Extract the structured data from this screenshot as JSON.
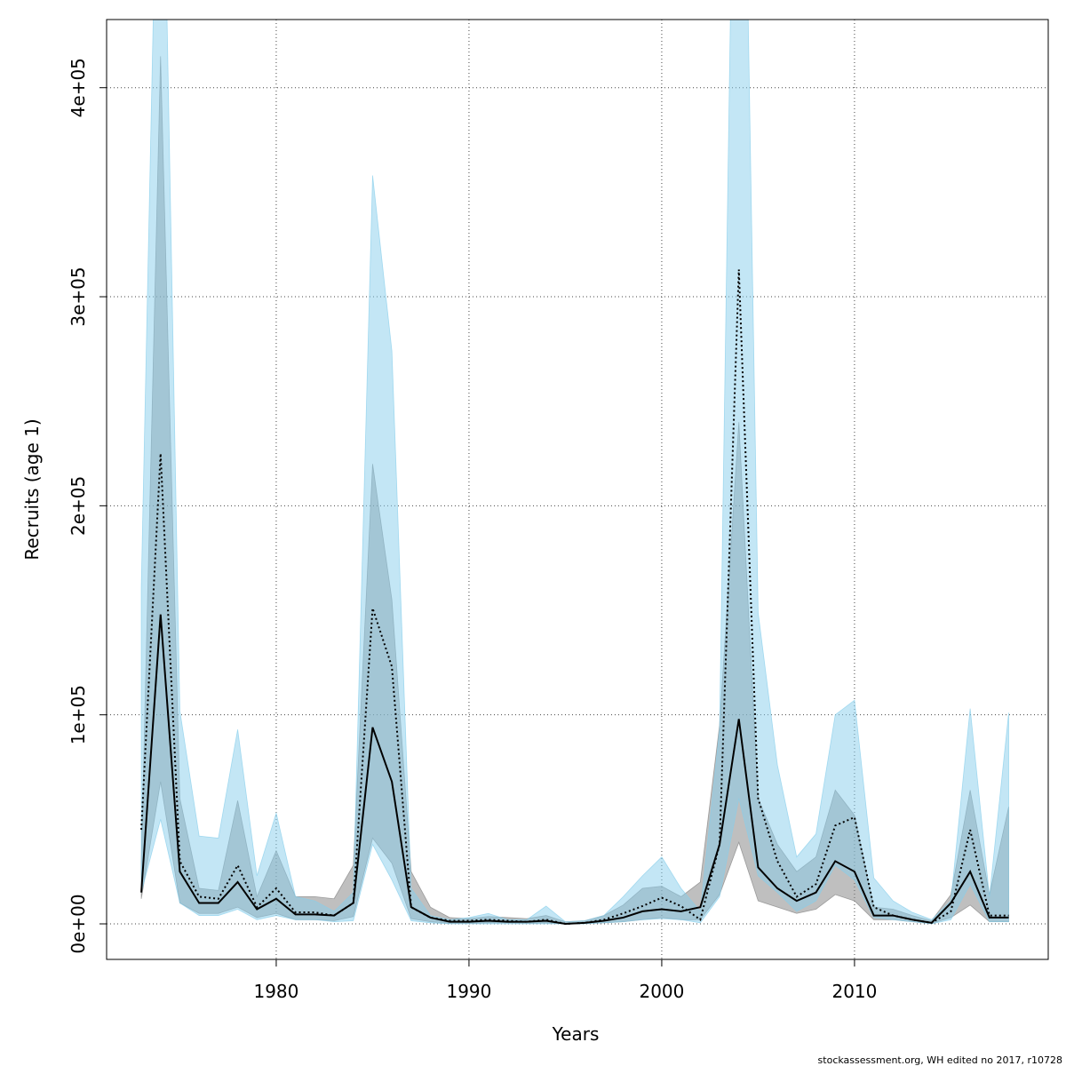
{
  "chart_data": {
    "type": "band-line",
    "xlabel": "Years",
    "ylabel": "Recruits (age 1)",
    "footnote": "stockassessment.org, WH  edited  no  2017, r10728",
    "x": [
      1973,
      1974,
      1975,
      1976,
      1977,
      1978,
      1979,
      1980,
      1981,
      1982,
      1983,
      1984,
      1985,
      1986,
      1987,
      1988,
      1989,
      1990,
      1991,
      1992,
      1993,
      1994,
      1995,
      1996,
      1997,
      1998,
      1999,
      2000,
      2001,
      2002,
      2003,
      2004,
      2005,
      2006,
      2007,
      2008,
      2009,
      2010,
      2011,
      2012,
      2013,
      2014,
      2015,
      2016,
      2017,
      2018
    ],
    "xlim": [
      1971.2,
      2020.05
    ],
    "xticks": [
      1980,
      1990,
      2000,
      2010
    ],
    "ylim": [
      -17000,
      432600
    ],
    "yticks": [
      {
        "value": 0,
        "label": "0e+00"
      },
      {
        "value": 100000,
        "label": "1e+05"
      },
      {
        "value": 200000,
        "label": "2e+05"
      },
      {
        "value": 300000,
        "label": "3e+05"
      },
      {
        "value": 400000,
        "label": "4e+05"
      }
    ],
    "grid": true,
    "series": [
      {
        "color": "#808080",
        "line_color": "#000000",
        "line_style": "solid",
        "values": [
          15000,
          148000,
          25000,
          10000,
          10000,
          20000,
          7000,
          12000,
          4500,
          4500,
          4000,
          10000,
          94000,
          68000,
          8000,
          3000,
          1000,
          1000,
          1500,
          1000,
          1000,
          1500,
          0,
          500,
          1500,
          3000,
          6000,
          7000,
          6000,
          8000,
          38000,
          98000,
          27000,
          17000,
          11000,
          15000,
          30000,
          25000,
          4000,
          4000,
          2000,
          500,
          10000,
          25000,
          3000,
          3000
        ],
        "lower": [
          12000,
          68000,
          10000,
          5000,
          5000,
          8000,
          3000,
          5000,
          2000,
          2000,
          1500,
          3500,
          41000,
          29000,
          2500,
          1000,
          300,
          300,
          500,
          500,
          300,
          500,
          0,
          200,
          500,
          1000,
          2000,
          3000,
          2000,
          2000,
          14000,
          39000,
          11000,
          8000,
          5000,
          7000,
          14000,
          11000,
          2000,
          2000,
          1000,
          200,
          3000,
          9000,
          1000,
          1000
        ],
        "upper": [
          30000,
          415000,
          60000,
          17000,
          16000,
          59000,
          13000,
          35000,
          13000,
          13000,
          12000,
          28000,
          220000,
          155000,
          25000,
          8000,
          3000,
          2500,
          3500,
          3000,
          2500,
          4000,
          1000,
          1500,
          4000,
          9000,
          17000,
          18000,
          13000,
          20000,
          95000,
          240000,
          60000,
          38000,
          25000,
          32000,
          64000,
          52000,
          8000,
          7000,
          4000,
          1500,
          14000,
          64000,
          14000,
          56000
        ]
      },
      {
        "color": "#87ceeb",
        "line_color": "#000000",
        "line_style": "dotted",
        "values": [
          45000,
          225000,
          30000,
          13000,
          12000,
          28000,
          8000,
          17000,
          5500,
          5500,
          4000,
          10000,
          151000,
          123000,
          8000,
          3000,
          1500,
          1500,
          2000,
          1500,
          1000,
          2000,
          0,
          500,
          2000,
          5000,
          8500,
          12500,
          8500,
          2000,
          38000,
          313000,
          60000,
          30000,
          13000,
          19000,
          47000,
          51000,
          8000,
          4000,
          2000,
          500,
          6000,
          45000,
          4000,
          4000
        ],
        "lower": [
          15000,
          50000,
          10000,
          4000,
          4000,
          7000,
          2000,
          4000,
          2000,
          2000,
          1000,
          1500,
          38000,
          21000,
          1500,
          500,
          0,
          0,
          0,
          0,
          0,
          0,
          0,
          0,
          500,
          1000,
          2000,
          2500,
          2000,
          500,
          13000,
          60000,
          23000,
          15000,
          6000,
          11000,
          28000,
          21000,
          3000,
          2000,
          1000,
          0,
          2000,
          19000,
          1000,
          1000
        ],
        "upper": [
          161000,
          600000,
          102000,
          42000,
          41000,
          93000,
          23000,
          53000,
          13000,
          11000,
          6000,
          15000,
          358000,
          274000,
          17000,
          4000,
          2000,
          3000,
          5000,
          2000,
          2000,
          8500,
          1000,
          1500,
          4000,
          13000,
          23000,
          32000,
          17000,
          6000,
          93000,
          700000,
          149000,
          76000,
          32000,
          43000,
          100000,
          107000,
          22000,
          11000,
          5500,
          2000,
          11000,
          103000,
          13000,
          101000
        ]
      }
    ]
  }
}
